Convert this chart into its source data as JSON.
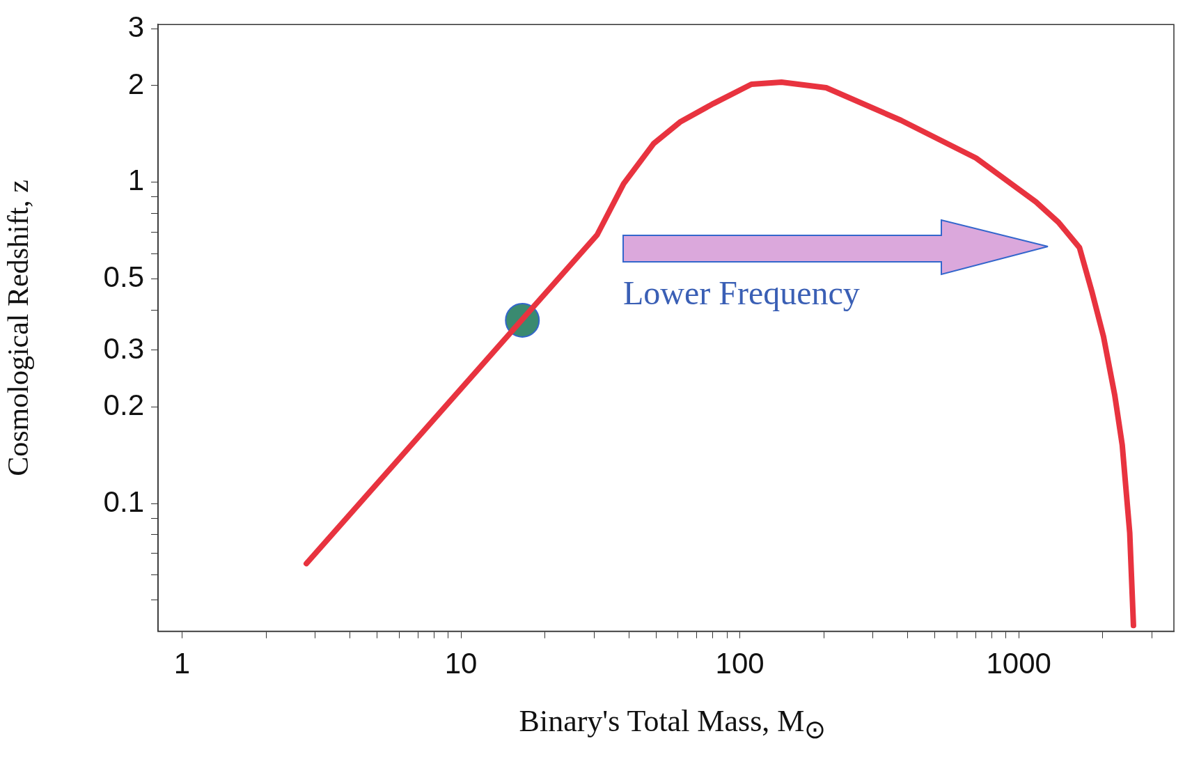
{
  "chart_data": {
    "type": "line",
    "xlabel": "Binary's Total Mass,  M$_{⊙}$",
    "ylabel": "Cosmological Redshift, z",
    "log": "xy",
    "grid": false,
    "legend": false,
    "marker": "none",
    "line_style": "solid",
    "xlim": [
      0.82,
      3600
    ],
    "ylim": [
      0.04,
      3.1
    ],
    "xticks": [
      1,
      {
        "value": 2,
        "label": null
      },
      {
        "value": 3,
        "label": null
      },
      {
        "value": 4,
        "label": null
      },
      {
        "value": 5,
        "label": null
      },
      {
        "value": 6,
        "label": null
      },
      {
        "value": 7,
        "label": null
      },
      {
        "value": 8,
        "label": null
      },
      {
        "value": 9,
        "label": null
      },
      10,
      {
        "value": 20,
        "label": null
      },
      {
        "value": 30,
        "label": null
      },
      {
        "value": 40,
        "label": null
      },
      {
        "value": 50,
        "label": null
      },
      {
        "value": 60,
        "label": null
      },
      {
        "value": 70,
        "label": null
      },
      {
        "value": 80,
        "label": null
      },
      {
        "value": 90,
        "label": null
      },
      100,
      {
        "value": 200,
        "label": null
      },
      {
        "value": 300,
        "label": null
      },
      {
        "value": 400,
        "label": null
      },
      {
        "value": 500,
        "label": null
      },
      {
        "value": 600,
        "label": null
      },
      {
        "value": 700,
        "label": null
      },
      {
        "value": 800,
        "label": null
      },
      {
        "value": 900,
        "label": null
      },
      1000,
      {
        "value": 2000,
        "label": null
      },
      {
        "value": 3000,
        "label": null
      }
    ],
    "yticks": [
      {
        "value": 0.05,
        "label": null
      },
      {
        "value": 0.06,
        "label": null
      },
      {
        "value": 0.07,
        "label": null
      },
      {
        "value": 0.08,
        "label": null
      },
      {
        "value": 0.09,
        "label": null
      },
      0.1,
      0.2,
      0.3,
      {
        "value": 0.4,
        "label": null
      },
      0.5,
      {
        "value": 0.6,
        "label": null
      },
      {
        "value": 0.7,
        "label": null
      },
      {
        "value": 0.8,
        "label": null
      },
      {
        "value": 0.9,
        "label": null
      },
      1,
      2,
      3
    ],
    "annotations": [
      "Lower Frequency"
    ],
    "series": [
      {
        "color": "#e8333f",
        "x": [
          2.79,
          30.8,
          38.3,
          49.1,
          61,
          80.5,
          110,
          141,
          204,
          378,
          703,
          1153,
          1388,
          1651,
          1834,
          2013,
          2208,
          2350,
          2500,
          2578
        ],
        "values": [
          0.065,
          0.687,
          0.99,
          1.32,
          1.54,
          1.76,
          2.02,
          2.05,
          1.97,
          1.56,
          1.19,
          0.869,
          0.751,
          0.626,
          0.453,
          0.331,
          0.218,
          0.152,
          0.081,
          0.0417
        ]
      },
      {
        "type": "scatter",
        "color": "#3a8a70",
        "marker": "circle",
        "x": [
          16.6
        ],
        "values": [
          0.372
        ]
      }
    ]
  }
}
